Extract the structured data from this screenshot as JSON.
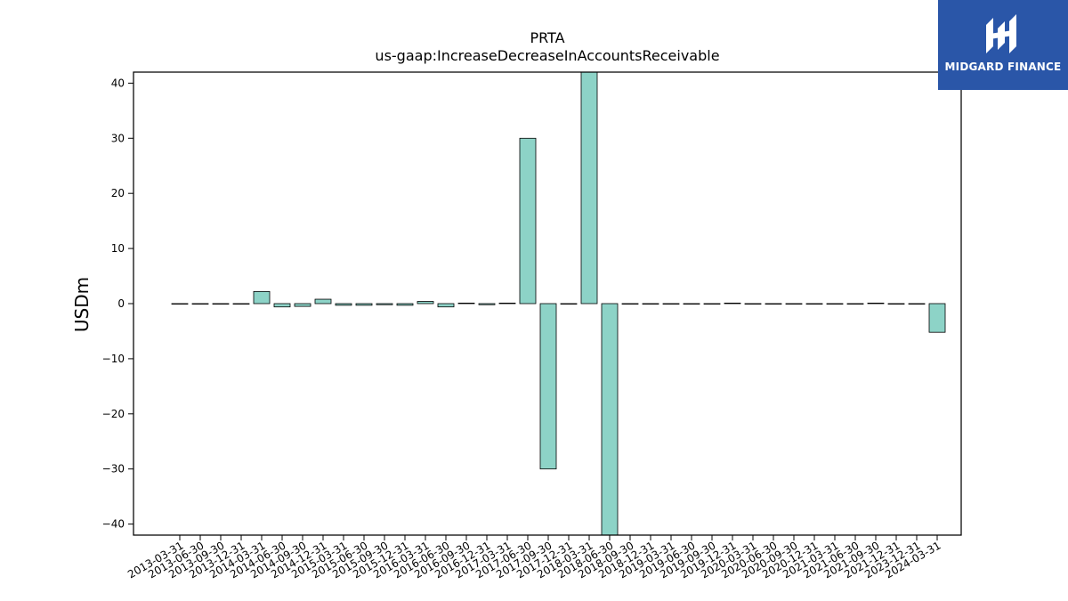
{
  "chart_data": {
    "type": "bar",
    "title": "PRTA",
    "subtitle": "us-gaap:IncreaseDecreaseInAccountsReceivable",
    "xlabel": "",
    "ylabel": "USDm",
    "ylim": [
      -42,
      42
    ],
    "yticks": [
      -40,
      -30,
      -20,
      -10,
      0,
      10,
      20,
      30,
      40
    ],
    "grid": false,
    "bar_color": "#8dd3c7",
    "edge_color": "#000000",
    "categories": [
      "2013-03-31",
      "2013-06-30",
      "2013-09-30",
      "2013-12-31",
      "2014-03-31",
      "2014-06-30",
      "2014-09-30",
      "2014-12-31",
      "2015-03-31",
      "2015-06-30",
      "2015-09-30",
      "2015-12-31",
      "2016-03-31",
      "2016-06-30",
      "2016-09-30",
      "2016-12-31",
      "2017-03-31",
      "2017-06-30",
      "2017-09-30",
      "2017-12-31",
      "2018-03-31",
      "2018-06-30",
      "2018-09-30",
      "2018-12-31",
      "2019-03-31",
      "2019-06-30",
      "2019-09-30",
      "2019-12-31",
      "2020-03-31",
      "2020-06-30",
      "2020-09-30",
      "2020-12-31",
      "2021-03-31",
      "2021-06-30",
      "2021-09-30",
      "2021-12-31",
      "2023-12-31",
      "2024-03-31"
    ],
    "values": [
      0,
      0,
      0,
      0,
      2.2,
      -0.6,
      -0.5,
      0.8,
      -0.3,
      -0.3,
      -0.2,
      -0.3,
      0.4,
      -0.6,
      0.1,
      -0.2,
      0.1,
      30,
      -30,
      0,
      42.5,
      -42.5,
      0,
      0,
      0,
      0,
      0,
      0.1,
      0,
      0,
      0,
      0,
      0,
      0,
      0.1,
      0,
      0,
      -5.2
    ]
  },
  "logo": {
    "text": "MIDGARD FINANCE",
    "bg_color": "#2a56a8"
  }
}
